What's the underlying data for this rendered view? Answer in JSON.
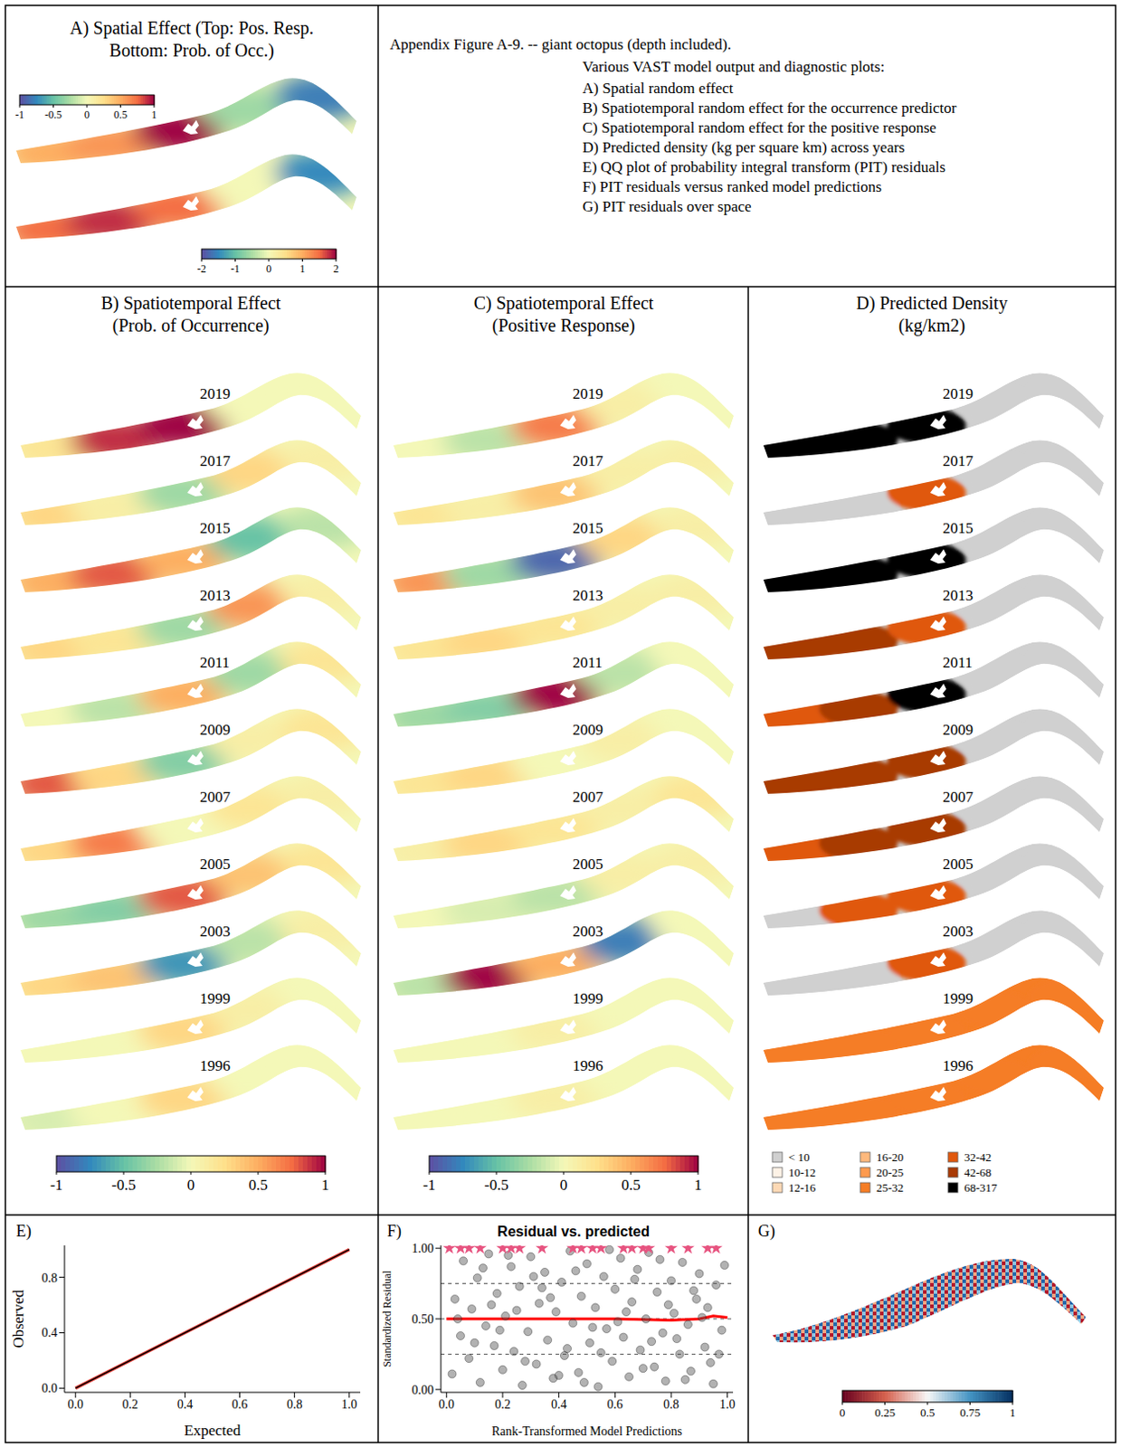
{
  "caption": {
    "title": "Appendix Figure A-9. -- giant octopus (depth included).",
    "intro": "Various VAST model output and diagnostic plots:",
    "items": [
      "A) Spatial random effect",
      "B) Spatiotemporal random effect for the occurrence predictor",
      "C) Spatiotemporal random effect for the positive response",
      "D) Predicted density (kg per square km) across years",
      "E) QQ plot of probability integral transform (PIT) residuals",
      "F) PIT residuals versus ranked model predictions",
      "G) PIT residuals over space"
    ]
  },
  "chart_data": [
    {
      "type": "map",
      "title": [
        "A) Spatial Effect (Top: Pos. Resp.",
        "Bottom: Prob. of Occ.)"
      ],
      "maps": [
        {
          "values": [
            0.5,
            0.6,
            1.0,
            -0.3,
            -0.8
          ],
          "colorbar": {
            "range": [
              -1,
              1
            ],
            "ticks": [
              -1,
              -0.5,
              0,
              0.5,
              1
            ]
          }
        },
        {
          "values": [
            1.5,
            1.8,
            1.5,
            0.0,
            -1.5
          ],
          "colorbar": {
            "range": [
              -2,
              2
            ],
            "ticks": [
              -2,
              -1,
              0,
              1,
              2
            ]
          }
        }
      ]
    },
    {
      "type": "map",
      "title": [
        "B) Spatiotemporal Effect",
        "(Prob. of Occurrence)"
      ],
      "years": [
        "2019",
        "2017",
        "2015",
        "2013",
        "2011",
        "2009",
        "2007",
        "2005",
        "2003",
        "1999",
        "1996"
      ],
      "values": [
        [
          0.2,
          0.9,
          1.0,
          0.0,
          0.0
        ],
        [
          0.3,
          0.1,
          -0.3,
          0.3,
          0.1
        ],
        [
          0.5,
          0.8,
          0.5,
          -0.5,
          -0.2
        ],
        [
          0.3,
          0.2,
          -0.3,
          0.6,
          0.1
        ],
        [
          0.0,
          -0.2,
          0.5,
          -0.3,
          0.2
        ],
        [
          0.8,
          0.3,
          -0.4,
          0.1,
          0.2
        ],
        [
          0.3,
          0.7,
          0.0,
          0.2,
          0.1
        ],
        [
          -0.3,
          -0.4,
          0.8,
          0.4,
          0.2
        ],
        [
          0.3,
          0.4,
          -0.7,
          -0.2,
          0.1
        ],
        [
          0.0,
          0.0,
          0.3,
          0.1,
          0.0
        ],
        [
          -0.1,
          0.0,
          0.3,
          0.0,
          0.0
        ]
      ],
      "colorbar": {
        "range": [
          -1,
          1
        ],
        "ticks": [
          -1,
          -0.5,
          0,
          0.5,
          1
        ]
      }
    },
    {
      "type": "map",
      "title": [
        "C) Spatiotemporal Effect",
        "(Positive Response)"
      ],
      "years": [
        "2019",
        "2017",
        "2015",
        "2013",
        "2011",
        "2009",
        "2007",
        "2005",
        "2003",
        "1999",
        "1996"
      ],
      "values": [
        [
          0.0,
          -0.2,
          0.7,
          0.1,
          0.0
        ],
        [
          0.2,
          0.1,
          0.4,
          0.1,
          0.1
        ],
        [
          0.6,
          -0.3,
          -0.9,
          0.3,
          0.1
        ],
        [
          0.2,
          0.3,
          0.2,
          0.1,
          0.1
        ],
        [
          -0.3,
          -0.4,
          1.0,
          -0.2,
          0.0
        ],
        [
          0.2,
          0.3,
          0.0,
          0.1,
          0.0
        ],
        [
          0.1,
          0.3,
          0.2,
          0.1,
          0.2
        ],
        [
          0.0,
          -0.1,
          -0.2,
          0.1,
          0.1
        ],
        [
          -0.2,
          1.0,
          0.5,
          -0.8,
          0.0
        ],
        [
          0.0,
          0.0,
          0.1,
          0.0,
          0.0
        ],
        [
          0.0,
          0.0,
          0.1,
          0.0,
          0.0
        ]
      ],
      "colorbar": {
        "range": [
          -1,
          1
        ],
        "ticks": [
          -1,
          -0.5,
          0,
          0.5,
          1
        ]
      }
    },
    {
      "type": "map",
      "title": [
        "D) Predicted Density",
        "(kg/km2)"
      ],
      "years": [
        "2019",
        "2017",
        "2015",
        "2013",
        "2011",
        "2009",
        "2007",
        "2005",
        "2003",
        "1999",
        "1996"
      ],
      "classes": [
        {
          "label": "< 10",
          "color": "#d0d0d0"
        },
        {
          "label": "10-12",
          "color": "#fdf2e6"
        },
        {
          "label": "12-16",
          "color": "#fdd9b5"
        },
        {
          "label": "16-20",
          "color": "#fdb97d"
        },
        {
          "label": "20-25",
          "color": "#fd9a4e"
        },
        {
          "label": "25-32",
          "color": "#f57d25"
        },
        {
          "label": "32-42",
          "color": "#e0580d"
        },
        {
          "label": "42-68",
          "color": "#a83a06"
        },
        {
          "label": "68-317",
          "color": "#000000"
        }
      ],
      "background": [
        "< 10",
        "< 10",
        "< 10",
        "< 10",
        "< 10",
        "< 10",
        "< 10",
        "< 10",
        "< 10",
        "25-32",
        "25-32"
      ],
      "regions": [
        [
          "68-317",
          "68-317",
          "68-317",
          "< 10",
          "< 10"
        ],
        [
          "< 10",
          "< 10",
          "32-42",
          "< 10",
          "< 10"
        ],
        [
          "68-317",
          "68-317",
          "68-317",
          "< 10",
          "< 10"
        ],
        [
          "42-68",
          "42-68",
          "32-42",
          "< 10",
          "< 10"
        ],
        [
          "32-42",
          "42-68",
          "68-317",
          "< 10",
          "< 10"
        ],
        [
          "42-68",
          "42-68",
          "42-68",
          "< 10",
          "< 10"
        ],
        [
          "32-42",
          "42-68",
          "42-68",
          "< 10",
          "< 10"
        ],
        [
          "< 10",
          "32-42",
          "32-42",
          "< 10",
          "< 10"
        ],
        [
          "< 10",
          "< 10",
          "32-42",
          "< 10",
          "< 10"
        ],
        [
          "25-32",
          "25-32",
          "25-32",
          "25-32",
          "25-32"
        ],
        [
          "25-32",
          "25-32",
          "25-32",
          "25-32",
          "25-32"
        ]
      ]
    },
    {
      "type": "line",
      "panel": "E)",
      "xlabel": "Expected",
      "ylabel": "Observed",
      "xlim": [
        -0.04,
        1.04
      ],
      "ylim": [
        -0.03,
        1.03
      ],
      "xticks": [
        {
          "value": 0,
          "label": "0.0"
        },
        {
          "value": 0.2,
          "label": "0.2"
        },
        {
          "value": 0.4,
          "label": "0.4"
        },
        {
          "value": 0.6,
          "label": "0.6"
        },
        {
          "value": 0.8,
          "label": "0.8"
        },
        {
          "value": 1,
          "label": "1.0"
        }
      ],
      "yticks": [
        {
          "value": 0,
          "label": "0.0"
        },
        {
          "value": 0.4,
          "label": "0.4"
        },
        {
          "value": 0.8,
          "label": "0.8"
        }
      ],
      "grid": false,
      "series": [
        {
          "color": "#e8403a",
          "x": [
            0,
            1
          ],
          "values": [
            0,
            1
          ]
        },
        {
          "color": "#000000",
          "x": [
            0,
            1
          ],
          "values": [
            0,
            1
          ]
        }
      ]
    },
    {
      "type": "scatter",
      "panel": "F)",
      "title": "Residual vs. predicted",
      "xlabel": "Rank-Transformed Model Predictions",
      "ylabel": "Standardized Residual",
      "xlim": [
        -0.02,
        1.02
      ],
      "ylim": [
        -0.02,
        1.02
      ],
      "xticks": [
        {
          "value": 0,
          "label": "0.0"
        },
        {
          "value": 0.2,
          "label": "0.2"
        },
        {
          "value": 0.4,
          "label": "0.4"
        },
        {
          "value": 0.6,
          "label": "0.6"
        },
        {
          "value": 0.8,
          "label": "0.8"
        },
        {
          "value": 1,
          "label": "1.0"
        }
      ],
      "yticks": [
        {
          "value": 0,
          "label": "0.00"
        },
        {
          "value": 0.5,
          "label": "0.50"
        },
        {
          "value": 1,
          "label": "1.00"
        }
      ],
      "quantile_lines": [
        0.25,
        0.5,
        0.75
      ],
      "grid": false,
      "series": [
        {
          "type": "scatter",
          "marker": "circle",
          "color": "#555555",
          "x": [
            0.02,
            0.03,
            0.05,
            0.06,
            0.08,
            0.09,
            0.11,
            0.12,
            0.14,
            0.15,
            0.17,
            0.18,
            0.2,
            0.21,
            0.23,
            0.24,
            0.26,
            0.27,
            0.29,
            0.3,
            0.32,
            0.33,
            0.35,
            0.36,
            0.38,
            0.39,
            0.41,
            0.42,
            0.44,
            0.45,
            0.47,
            0.48,
            0.5,
            0.51,
            0.53,
            0.54,
            0.56,
            0.57,
            0.59,
            0.6,
            0.62,
            0.63,
            0.65,
            0.66,
            0.68,
            0.69,
            0.71,
            0.72,
            0.74,
            0.75,
            0.77,
            0.78,
            0.8,
            0.81,
            0.83,
            0.84,
            0.86,
            0.87,
            0.89,
            0.9,
            0.92,
            0.93,
            0.95,
            0.96,
            0.98,
            0.99,
            0.04,
            0.1,
            0.16,
            0.22,
            0.28,
            0.34,
            0.4,
            0.46,
            0.52,
            0.58,
            0.64,
            0.7,
            0.76,
            0.82,
            0.88,
            0.94,
            0.13,
            0.19,
            0.25,
            0.31,
            0.37,
            0.43,
            0.49,
            0.55,
            0.61,
            0.67,
            0.73,
            0.79,
            0.85,
            0.91,
            0.97
          ],
          "values": [
            0.11,
            0.64,
            0.38,
            0.91,
            0.22,
            0.57,
            0.79,
            0.05,
            0.45,
            0.96,
            0.31,
            0.68,
            0.14,
            0.52,
            0.87,
            0.27,
            0.73,
            0.03,
            0.41,
            0.94,
            0.18,
            0.61,
            0.83,
            0.35,
            0.08,
            0.55,
            0.76,
            0.24,
            0.98,
            0.47,
            0.12,
            0.66,
            0.89,
            0.33,
            0.58,
            0.02,
            0.8,
            0.43,
            0.2,
            0.71,
            0.93,
            0.37,
            0.09,
            0.62,
            0.85,
            0.28,
            0.5,
            0.97,
            0.16,
            0.69,
            0.4,
            0.06,
            0.77,
            0.54,
            0.25,
            0.9,
            0.46,
            0.13,
            0.64,
            0.82,
            0.3,
            0.58,
            0.04,
            0.74,
            0.42,
            0.88,
            0.5,
            0.33,
            0.6,
            0.95,
            0.2,
            0.72,
            0.1,
            0.84,
            0.44,
            0.99,
            0.55,
            0.15,
            0.92,
            0.36,
            0.7,
            0.19,
            0.86,
            0.42,
            0.56,
            0.8,
            0.65,
            0.29,
            0.05,
            0.26,
            0.48,
            0.78,
            0.34,
            0.6,
            0.07,
            0.51,
            0.25
          ]
        },
        {
          "type": "scatter",
          "marker": "star",
          "color": "#e75480",
          "x": [
            0.01,
            0.05,
            0.08,
            0.12,
            0.2,
            0.23,
            0.26,
            0.34,
            0.45,
            0.48,
            0.52,
            0.55,
            0.63,
            0.66,
            0.7,
            0.72,
            0.8,
            0.86,
            0.93,
            0.96
          ],
          "values": [
            1,
            1,
            1,
            1,
            1,
            1,
            1,
            1,
            1,
            1,
            1,
            1,
            1,
            1,
            1,
            1,
            1,
            1,
            1,
            1
          ]
        },
        {
          "type": "line",
          "color": "#ff0000",
          "x": [
            0,
            0.2,
            0.4,
            0.6,
            0.8,
            0.9,
            0.95,
            1.0
          ],
          "values": [
            0.5,
            0.5,
            0.5,
            0.5,
            0.49,
            0.5,
            0.52,
            0.51
          ]
        }
      ]
    },
    {
      "type": "map",
      "panel": "G)",
      "colorbar": {
        "range": [
          0,
          1
        ],
        "ticks": [
          0,
          0.25,
          0.5,
          0.75,
          1
        ]
      }
    }
  ]
}
